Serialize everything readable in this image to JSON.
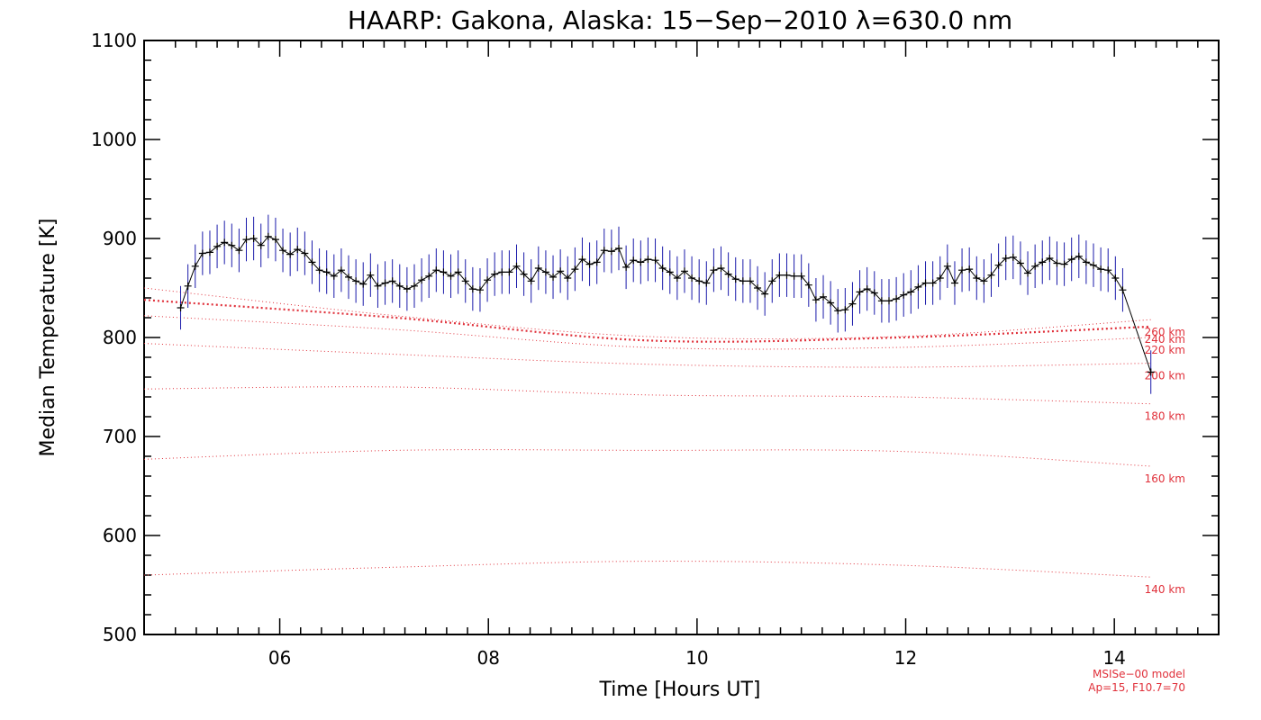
{
  "chart_data": {
    "type": "line",
    "title": "HAARP: Gakona,  Alaska: 15−Sep−2010 λ=630.0 nm",
    "xlabel": "Time [Hours UT]",
    "ylabel": "Median Temperature [K]",
    "xlim": [
      4.7,
      15.0
    ],
    "ylim": [
      500,
      1100
    ],
    "xticks": [
      6,
      8,
      10,
      12,
      14
    ],
    "xtick_labels": [
      "06",
      "08",
      "10",
      "12",
      "14"
    ],
    "yticks": [
      500,
      600,
      700,
      800,
      900,
      1000,
      1100
    ],
    "ytick_labels": [
      "500",
      "600",
      "700",
      "800",
      "900",
      "1000",
      "1100"
    ],
    "grid": false,
    "measured": {
      "color": "#1a1aaa",
      "line_color": "#000000",
      "error": 22,
      "x": [
        5.05,
        5.12,
        5.19,
        5.26,
        5.33,
        5.4,
        5.47,
        5.54,
        5.61,
        5.68,
        5.75,
        5.82,
        5.89,
        5.96,
        6.03,
        6.1,
        6.17,
        6.24,
        6.31,
        6.38,
        6.45,
        6.52,
        6.59,
        6.66,
        6.73,
        6.8,
        6.87,
        6.94,
        7.01,
        7.08,
        7.15,
        7.22,
        7.29,
        7.36,
        7.43,
        7.5,
        7.57,
        7.64,
        7.71,
        7.78,
        7.85,
        7.92,
        7.99,
        8.06,
        8.13,
        8.2,
        8.27,
        8.34,
        8.41,
        8.48,
        8.55,
        8.62,
        8.69,
        8.76,
        8.83,
        8.9,
        8.97,
        9.04,
        9.11,
        9.18,
        9.25,
        9.32,
        9.39,
        9.46,
        9.53,
        9.6,
        9.67,
        9.74,
        9.81,
        9.88,
        9.95,
        10.02,
        10.09,
        10.16,
        10.23,
        10.3,
        10.37,
        10.44,
        10.51,
        10.58,
        10.65,
        10.72,
        10.79,
        10.86,
        10.93,
        11.0,
        11.07,
        11.14,
        11.21,
        11.28,
        11.35,
        11.42,
        11.49,
        11.56,
        11.63,
        11.7,
        11.77,
        11.84,
        11.91,
        11.98,
        12.05,
        12.12,
        12.19,
        12.26,
        12.33,
        12.4,
        12.47,
        12.54,
        12.61,
        12.68,
        12.75,
        12.82,
        12.89,
        12.96,
        13.03,
        13.1,
        13.17,
        13.24,
        13.31,
        13.38,
        13.45,
        13.52,
        13.59,
        13.66,
        13.73,
        13.8,
        13.87,
        13.94,
        14.01,
        14.08,
        14.35
      ],
      "y": [
        830,
        852,
        872,
        885,
        886,
        892,
        896,
        893,
        888,
        899,
        900,
        893,
        902,
        899,
        888,
        884,
        889,
        885,
        876,
        868,
        866,
        862,
        868,
        861,
        857,
        854,
        863,
        852,
        855,
        857,
        852,
        849,
        852,
        858,
        862,
        868,
        866,
        862,
        866,
        857,
        849,
        848,
        858,
        864,
        866,
        866,
        872,
        864,
        857,
        870,
        866,
        861,
        867,
        860,
        869,
        879,
        874,
        876,
        888,
        887,
        890,
        871,
        878,
        876,
        879,
        878,
        870,
        866,
        860,
        867,
        860,
        857,
        855,
        868,
        870,
        864,
        859,
        857,
        857,
        850,
        844,
        857,
        863,
        863,
        862,
        862,
        853,
        838,
        841,
        835,
        827,
        828,
        834,
        846,
        849,
        845,
        837,
        837,
        839,
        843,
        846,
        851,
        855,
        855,
        860,
        872,
        855,
        868,
        869,
        860,
        857,
        863,
        873,
        880,
        881,
        875,
        865,
        872,
        876,
        880,
        875,
        874,
        879,
        882,
        876,
        873,
        869,
        868,
        860,
        848,
        765
      ]
    },
    "model_curves": {
      "color": "#e0303a",
      "x_range": [
        4.7,
        14.35
      ],
      "series": [
        {
          "name": "260 km",
          "values": [
            850,
            822,
            801,
            801,
            818
          ]
        },
        {
          "name": "240 km",
          "values": [
            838,
            820,
            797,
            800,
            811
          ]
        },
        {
          "name": "220 km",
          "values": [
            822,
            808,
            790,
            790,
            800
          ]
        },
        {
          "name": "200 km",
          "values": [
            794,
            783,
            773,
            770,
            774
          ]
        },
        {
          "name": "180 km",
          "values": [
            748,
            750,
            742,
            740,
            733
          ]
        },
        {
          "name": "160 km",
          "values": [
            677,
            686,
            686,
            685,
            670
          ]
        },
        {
          "name": "140 km",
          "values": [
            560,
            568,
            574,
            570,
            558
          ]
        }
      ]
    },
    "model_note": [
      "MSISe−00 model",
      "Ap=15, F10.7=70"
    ]
  }
}
